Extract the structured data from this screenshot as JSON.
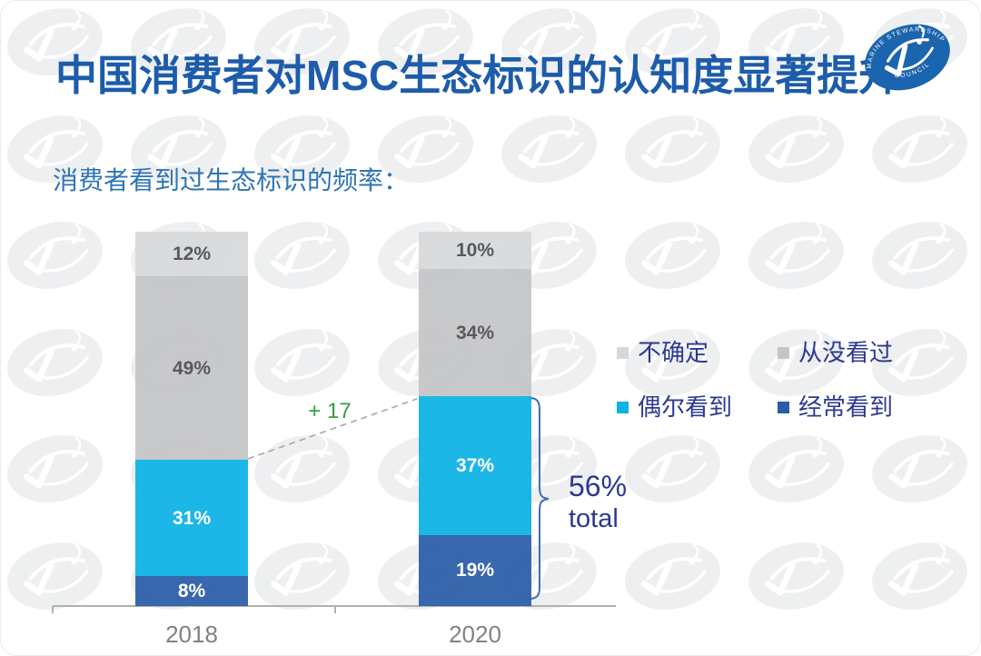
{
  "title": "中国消费者对MSC生态标识的认知度显著提升",
  "subtitle": "消费者看到过生态标识的频率：",
  "logo": {
    "arc_top": "MARINE STEWARDSHIP",
    "arc_bottom": "COUNCIL",
    "color": "#1b64ae"
  },
  "colors": {
    "title": "#1d5cab",
    "subtitle": "#2e74b5",
    "legend_text": "#2b3990",
    "axis_text": "#808285",
    "axis_line": "#aeb0b1",
    "bracket": "#3f6cb7",
    "dashed_line": "#a8a8a8",
    "watermark": "#edeff0"
  },
  "chart_data": {
    "type": "bar",
    "stacked": true,
    "categories": [
      "2018",
      "2020"
    ],
    "series_order": "bottom_to_top",
    "series": [
      {
        "name": "经常看到",
        "color": "#2a5ca8",
        "label_color": "#ffffff",
        "values": [
          8,
          19
        ]
      },
      {
        "name": "偶尔看到",
        "color": "#0bb2e5",
        "label_color": "#ffffff",
        "values": [
          31,
          37
        ]
      },
      {
        "name": "从没看过",
        "color": "#c4c5c6",
        "label_color": "#58595b",
        "values": [
          49,
          34
        ]
      },
      {
        "name": "不确定",
        "color": "#d6d8d9",
        "label_color": "#58595b",
        "values": [
          12,
          10
        ]
      }
    ],
    "value_suffix": "%",
    "ylim": [
      0,
      100
    ],
    "grid": false,
    "legend_order": [
      "不确定",
      "从没看过",
      "偶尔看到",
      "经常看到"
    ],
    "annotations": {
      "delta_label": "+ 17",
      "delta_color": "#35a03c",
      "delta_from": "2018 偶尔看到+经常看到 = 39%",
      "delta_to": "2020 偶尔看到+经常看到 = 56%",
      "total_value": "56%",
      "total_word": "total",
      "total_color": "#2b3990"
    }
  }
}
